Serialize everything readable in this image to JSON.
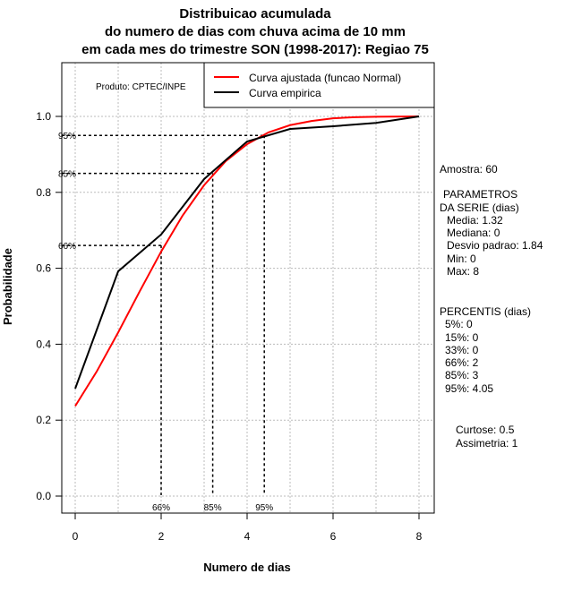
{
  "chart_data": {
    "type": "line",
    "title": [
      "Distribuicao acumulada",
      "do numero de dias com chuva acima de 10 mm",
      "em cada mes do trimestre SON (1998-2017): Regiao 75"
    ],
    "xlabel": "Numero de dias",
    "ylabel": "Probabilidade",
    "xlim": [
      0,
      8
    ],
    "ylim": [
      0,
      1
    ],
    "x_ticks": [
      "0",
      "2",
      "4",
      "6",
      "8"
    ],
    "y_ticks": [
      "0.0",
      "0.2",
      "0.4",
      "0.6",
      "0.8",
      "1.0"
    ],
    "grid": true,
    "credit": "Produto: CPTEC/INPE",
    "legend": {
      "placement": "top-right",
      "entries": [
        "Curva ajustada (funcao Normal)",
        "Curva empirica"
      ]
    },
    "series": [
      {
        "name": "Curva ajustada (funcao Normal)",
        "color": "#ff0000",
        "x": [
          0,
          0.5,
          1,
          1.5,
          2,
          2.5,
          3,
          3.5,
          4,
          4.5,
          5,
          5.5,
          6,
          6.5,
          7,
          8
        ],
        "y": [
          0.237,
          0.328,
          0.431,
          0.539,
          0.644,
          0.739,
          0.819,
          0.882,
          0.927,
          0.958,
          0.977,
          0.988,
          0.995,
          0.998,
          0.999,
          1.0
        ]
      },
      {
        "name": "Curva empirica",
        "color": "#000000",
        "x": [
          0,
          1,
          2,
          3,
          4,
          5,
          6,
          7,
          8
        ],
        "y": [
          0.283,
          0.592,
          0.689,
          0.835,
          0.934,
          0.967,
          0.974,
          0.983,
          1.0
        ]
      }
    ],
    "percentile_markers": [
      {
        "label": "66%",
        "x": 2.0,
        "y": 0.66
      },
      {
        "label": "85%",
        "x": 3.2,
        "y": 0.85
      },
      {
        "label": "95%",
        "x": 4.4,
        "y": 0.95
      }
    ]
  },
  "stats": {
    "amostra": "Amostra: 60",
    "param_title1": "PARAMETROS",
    "param_title2": "DA SERIE (dias)",
    "params": [
      "Media: 1.32",
      "Mediana: 0",
      "Desvio padrao: 1.84",
      "Min: 0",
      "Max: 8"
    ],
    "perc_title": "PERCENTIS (dias)",
    "percentis": [
      "5%: 0",
      "15%: 0",
      "33%: 0",
      "66%: 2",
      "85%: 3",
      "95%: 4.05"
    ],
    "curtose": "Curtose: 0.5",
    "assimetria": "Assimetria: 1"
  }
}
